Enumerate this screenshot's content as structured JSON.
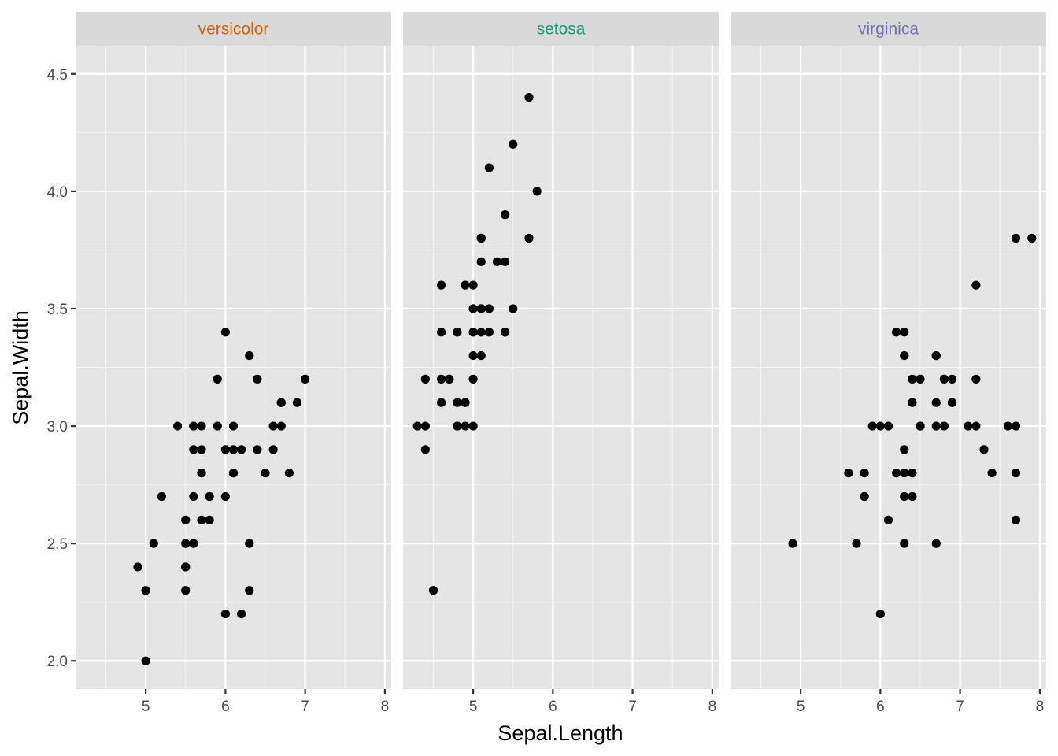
{
  "chart_data": {
    "type": "scatter",
    "xlabel": "Sepal.Length",
    "ylabel": "Sepal.Width",
    "xlim": [
      4.12,
      8.08
    ],
    "ylim": [
      1.88,
      4.62
    ],
    "x_ticks": [
      5,
      6,
      7,
      8
    ],
    "y_ticks": [
      2.0,
      2.5,
      3.0,
      3.5,
      4.0,
      4.5
    ],
    "y_tick_labels": [
      "2.0",
      "2.5",
      "3.0",
      "3.5",
      "4.0",
      "4.5"
    ],
    "grid": true,
    "facet_order": [
      "versicolor",
      "setosa",
      "virginica"
    ],
    "strip_colors": {
      "versicolor": "#D95F02",
      "setosa": "#1B9E77",
      "virginica": "#7570B3"
    },
    "panels": [
      {
        "name": "versicolor",
        "x": [
          7.0,
          6.4,
          6.9,
          5.5,
          6.5,
          5.7,
          6.3,
          4.9,
          6.6,
          5.2,
          5.0,
          5.9,
          6.0,
          6.1,
          5.6,
          6.7,
          5.6,
          5.8,
          6.2,
          5.6,
          5.9,
          6.1,
          6.3,
          6.1,
          6.4,
          6.6,
          6.8,
          6.7,
          6.0,
          5.7,
          5.5,
          5.5,
          5.8,
          6.0,
          5.4,
          6.0,
          6.7,
          6.3,
          5.6,
          5.5,
          5.5,
          6.1,
          5.8,
          5.0,
          5.6,
          5.7,
          5.7,
          6.2,
          5.1,
          5.7
        ],
        "y": [
          3.2,
          3.2,
          3.1,
          2.3,
          2.8,
          2.8,
          3.3,
          2.4,
          2.9,
          2.7,
          2.0,
          3.0,
          2.2,
          2.9,
          2.9,
          3.1,
          3.0,
          2.7,
          2.2,
          2.5,
          3.2,
          2.8,
          2.5,
          2.8,
          2.9,
          3.0,
          2.8,
          3.0,
          2.9,
          2.6,
          2.4,
          2.4,
          2.7,
          2.7,
          3.0,
          3.4,
          3.1,
          2.3,
          3.0,
          2.5,
          2.6,
          3.0,
          2.6,
          2.3,
          2.7,
          3.0,
          2.9,
          2.9,
          2.5,
          2.8
        ]
      },
      {
        "name": "setosa",
        "x": [
          5.1,
          4.9,
          4.7,
          4.6,
          5.0,
          5.4,
          4.6,
          5.0,
          4.4,
          4.9,
          5.4,
          4.8,
          4.8,
          4.3,
          5.8,
          5.7,
          5.4,
          5.1,
          5.7,
          5.1,
          5.4,
          5.1,
          4.6,
          5.1,
          4.8,
          5.0,
          5.0,
          5.2,
          5.2,
          4.7,
          4.8,
          5.4,
          5.2,
          5.5,
          4.9,
          5.0,
          5.5,
          4.9,
          4.4,
          5.1,
          5.0,
          4.5,
          4.4,
          5.0,
          5.1,
          4.8,
          5.1,
          4.6,
          5.3,
          5.0
        ],
        "y": [
          3.5,
          3.0,
          3.2,
          3.1,
          3.6,
          3.9,
          3.4,
          3.4,
          2.9,
          3.1,
          3.7,
          3.4,
          3.0,
          3.0,
          4.0,
          4.4,
          3.9,
          3.5,
          3.8,
          3.8,
          3.4,
          3.7,
          3.6,
          3.3,
          3.4,
          3.0,
          3.4,
          3.5,
          3.4,
          3.2,
          3.1,
          3.4,
          4.1,
          4.2,
          3.1,
          3.2,
          3.5,
          3.6,
          3.0,
          3.4,
          3.5,
          2.3,
          3.2,
          3.5,
          3.8,
          3.0,
          3.8,
          3.2,
          3.7,
          3.3
        ]
      },
      {
        "name": "virginica",
        "x": [
          6.3,
          5.8,
          7.1,
          6.3,
          6.5,
          7.6,
          4.9,
          7.3,
          6.7,
          7.2,
          6.5,
          6.4,
          6.8,
          5.7,
          5.8,
          6.4,
          6.5,
          7.7,
          7.7,
          6.0,
          6.9,
          5.6,
          7.7,
          6.3,
          6.7,
          7.2,
          6.2,
          6.1,
          6.4,
          7.2,
          7.4,
          7.9,
          6.4,
          6.3,
          6.1,
          7.7,
          6.3,
          6.4,
          6.0,
          6.9,
          6.7,
          6.9,
          5.8,
          6.8,
          6.7,
          6.7,
          6.3,
          6.5,
          6.2,
          5.9
        ],
        "y": [
          3.3,
          2.7,
          3.0,
          2.9,
          3.0,
          3.0,
          2.5,
          2.9,
          2.5,
          3.6,
          3.2,
          2.7,
          3.0,
          2.5,
          2.8,
          3.2,
          3.0,
          3.8,
          2.6,
          2.2,
          3.2,
          2.8,
          2.8,
          2.7,
          3.3,
          3.2,
          2.8,
          3.0,
          2.8,
          3.0,
          2.8,
          3.8,
          2.8,
          2.8,
          2.6,
          3.0,
          3.4,
          3.1,
          3.0,
          3.1,
          3.1,
          3.1,
          2.7,
          3.2,
          3.3,
          3.0,
          2.5,
          3.0,
          3.4,
          3.0
        ]
      }
    ]
  }
}
